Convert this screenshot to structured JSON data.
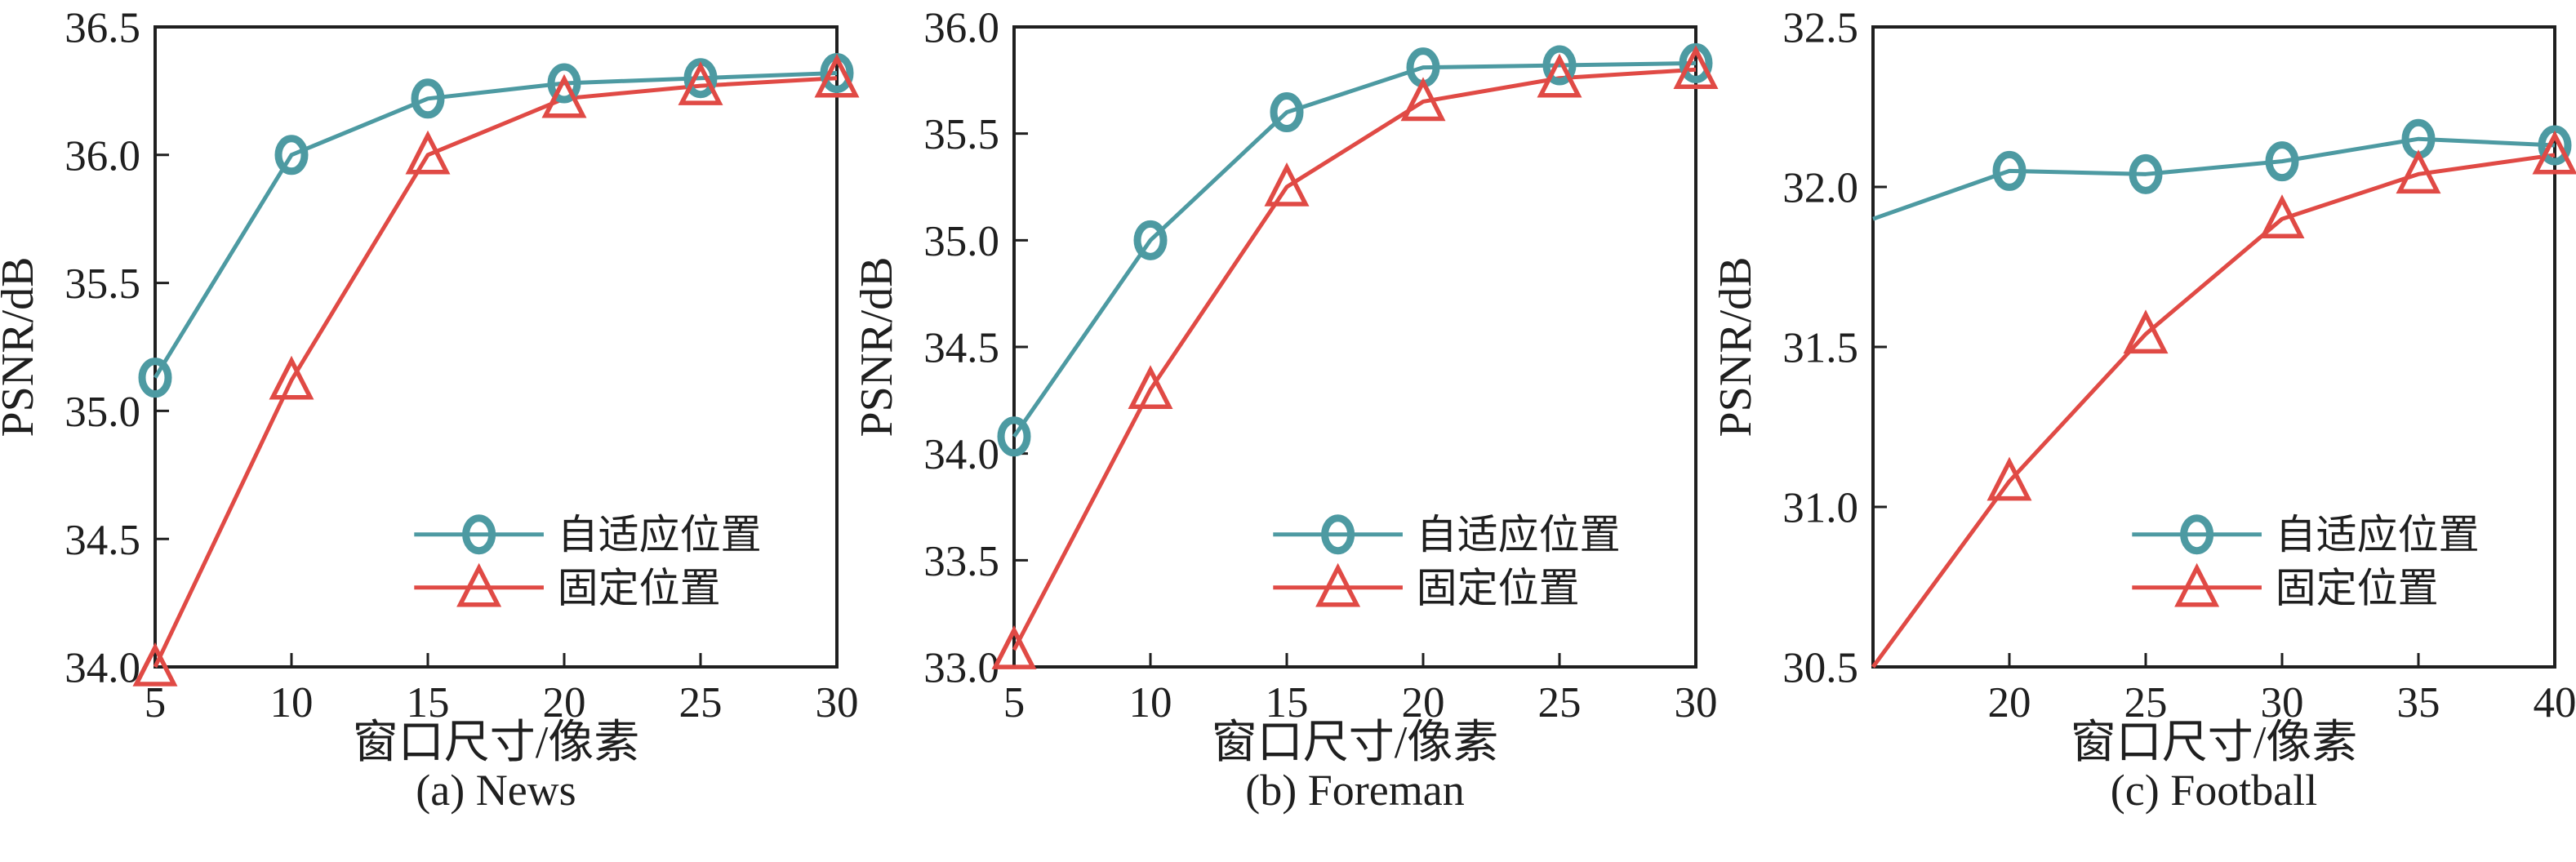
{
  "figure": {
    "background": "#ffffff",
    "axis_color": "#1f1f1f"
  },
  "chart_data": [
    {
      "type": "line",
      "caption": "(a) News",
      "xlabel": "窗口尺寸/像素",
      "ylabel": "PSNR/dB",
      "xlim": [
        5,
        30
      ],
      "ylim": [
        34.0,
        36.5
      ],
      "xticks": [
        "5",
        "10",
        "15",
        "20",
        "25",
        "30"
      ],
      "yticks": [
        "34.0",
        "34.5",
        "35.0",
        "35.5",
        "36.0",
        "36.5"
      ],
      "grid": false,
      "legend": {
        "position": "inside center-right"
      },
      "series": [
        {
          "name": "自适应位置",
          "marker": "circle",
          "color": "#4d9aa2",
          "x": [
            5,
            10,
            15,
            20,
            25,
            30
          ],
          "y": [
            35.13,
            36.0,
            36.22,
            36.28,
            36.3,
            36.32
          ],
          "markers_from": 0
        },
        {
          "name": "固定位置",
          "marker": "triangle",
          "color": "#e04a45",
          "x": [
            5,
            10,
            15,
            20,
            25,
            30
          ],
          "y": [
            34.0,
            35.12,
            36.0,
            36.22,
            36.27,
            36.3
          ],
          "markers_from": 0
        }
      ]
    },
    {
      "type": "line",
      "caption": "(b) Foreman",
      "xlabel": "窗口尺寸/像素",
      "ylabel": "PSNR/dB",
      "xlim": [
        5,
        30
      ],
      "ylim": [
        33.0,
        36.0
      ],
      "xticks": [
        "5",
        "10",
        "15",
        "20",
        "25",
        "30"
      ],
      "yticks": [
        "33.0",
        "33.5",
        "34.0",
        "34.5",
        "35.0",
        "35.5",
        "36.0"
      ],
      "grid": false,
      "legend": {
        "position": "inside center-right"
      },
      "series": [
        {
          "name": "自适应位置",
          "marker": "circle",
          "color": "#4d9aa2",
          "x": [
            5,
            10,
            15,
            20,
            25,
            30
          ],
          "y": [
            34.08,
            35.0,
            35.6,
            35.81,
            35.82,
            35.83
          ],
          "markers_from": 0
        },
        {
          "name": "固定位置",
          "marker": "triangle",
          "color": "#e04a45",
          "x": [
            5,
            10,
            15,
            20,
            25,
            30
          ],
          "y": [
            33.08,
            34.3,
            35.25,
            35.65,
            35.76,
            35.8
          ],
          "markers_from": 0
        }
      ]
    },
    {
      "type": "line",
      "caption": "(c) Football",
      "xlabel": "窗口尺寸/像素",
      "ylabel": "PSNR/dB",
      "xlim": [
        15,
        40
      ],
      "ylim": [
        30.5,
        32.5
      ],
      "xticks": [
        "20",
        "25",
        "30",
        "35",
        "40"
      ],
      "yticks": [
        "30.5",
        "31.0",
        "31.5",
        "32.0",
        "32.5"
      ],
      "grid": false,
      "legend": {
        "position": "inside center-right"
      },
      "series": [
        {
          "name": "自适应位置",
          "marker": "circle",
          "color": "#4d9aa2",
          "x": [
            15,
            20,
            25,
            30,
            35,
            40
          ],
          "y": [
            31.9,
            32.05,
            32.04,
            32.08,
            32.15,
            32.13
          ],
          "markers_from": 1
        },
        {
          "name": "固定位置",
          "marker": "triangle",
          "color": "#e04a45",
          "x": [
            15,
            20,
            25,
            30,
            35,
            40
          ],
          "y": [
            30.5,
            31.08,
            31.54,
            31.9,
            32.04,
            32.1
          ],
          "markers_from": 1
        }
      ]
    }
  ]
}
